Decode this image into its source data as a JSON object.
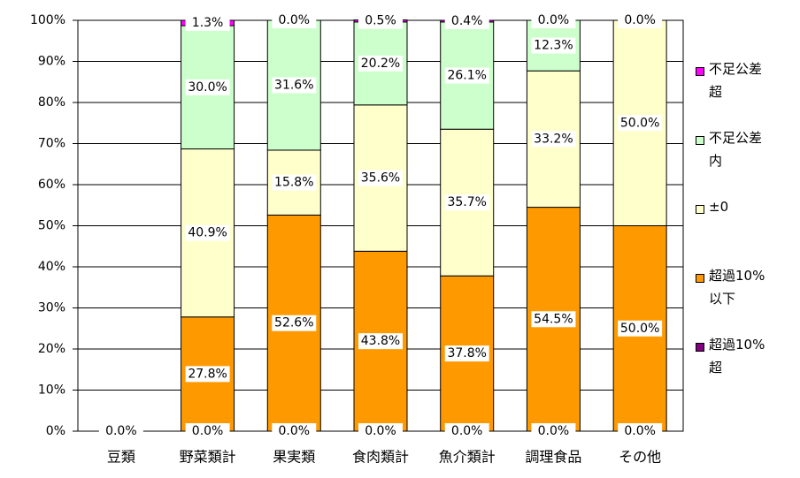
{
  "chart_data": {
    "type": "stacked-bar",
    "categories": [
      "豆類",
      "野菜類計",
      "果実類",
      "食肉類計",
      "魚介類計",
      "調理食品",
      "その他"
    ],
    "series": [
      {
        "name": "超過10%超",
        "color": "#800080",
        "values": [
          0,
          0,
          0,
          0,
          0,
          0,
          0
        ],
        "value_labels": [
          "0.0%",
          "0.0%",
          "0.0%",
          "0.0%",
          "0.0%",
          "0.0%",
          "0.0%"
        ]
      },
      {
        "name": "超過10%以下",
        "color": "#ff9900",
        "values": [
          null,
          27.8,
          52.6,
          43.8,
          37.8,
          54.5,
          50.0
        ],
        "value_labels": [
          null,
          "27.8%",
          "52.6%",
          "43.8%",
          "37.8%",
          "54.5%",
          "50.0%"
        ]
      },
      {
        "name": "±0",
        "color": "#ffffcc",
        "values": [
          null,
          40.9,
          15.8,
          35.6,
          35.7,
          33.2,
          50.0
        ],
        "value_labels": [
          null,
          "40.9%",
          "15.8%",
          "35.6%",
          "35.7%",
          "33.2%",
          "50.0%"
        ]
      },
      {
        "name": "不足公差内",
        "color": "#ccffcc",
        "values": [
          null,
          30.0,
          31.6,
          20.2,
          26.1,
          12.3,
          0.0
        ],
        "value_labels": [
          null,
          "30.0%",
          "31.6%",
          "20.2%",
          "26.1%",
          "12.3%",
          null
        ]
      },
      {
        "name": "不足公差超",
        "color": "#ff00ff",
        "values": [
          null,
          1.3,
          0.0,
          0.5,
          0.4,
          0.0,
          0.0
        ],
        "value_labels": [
          null,
          "1.3%",
          "0.0%",
          "0.5%",
          "0.4%",
          "0.0%",
          "0.0%"
        ]
      }
    ],
    "ylim": [
      0,
      100
    ],
    "yticks": [
      {
        "value": 0,
        "label": "0%"
      },
      {
        "value": 10,
        "label": "10%"
      },
      {
        "value": 20,
        "label": "20%"
      },
      {
        "value": 30,
        "label": "30%"
      },
      {
        "value": 40,
        "label": "40%"
      },
      {
        "value": 50,
        "label": "50%"
      },
      {
        "value": 60,
        "label": "60%"
      },
      {
        "value": 70,
        "label": "70%"
      },
      {
        "value": 80,
        "label": "80%"
      },
      {
        "value": 90,
        "label": "90%"
      },
      {
        "value": 100,
        "label": "100%"
      }
    ],
    "grid": true,
    "legend": "right"
  }
}
